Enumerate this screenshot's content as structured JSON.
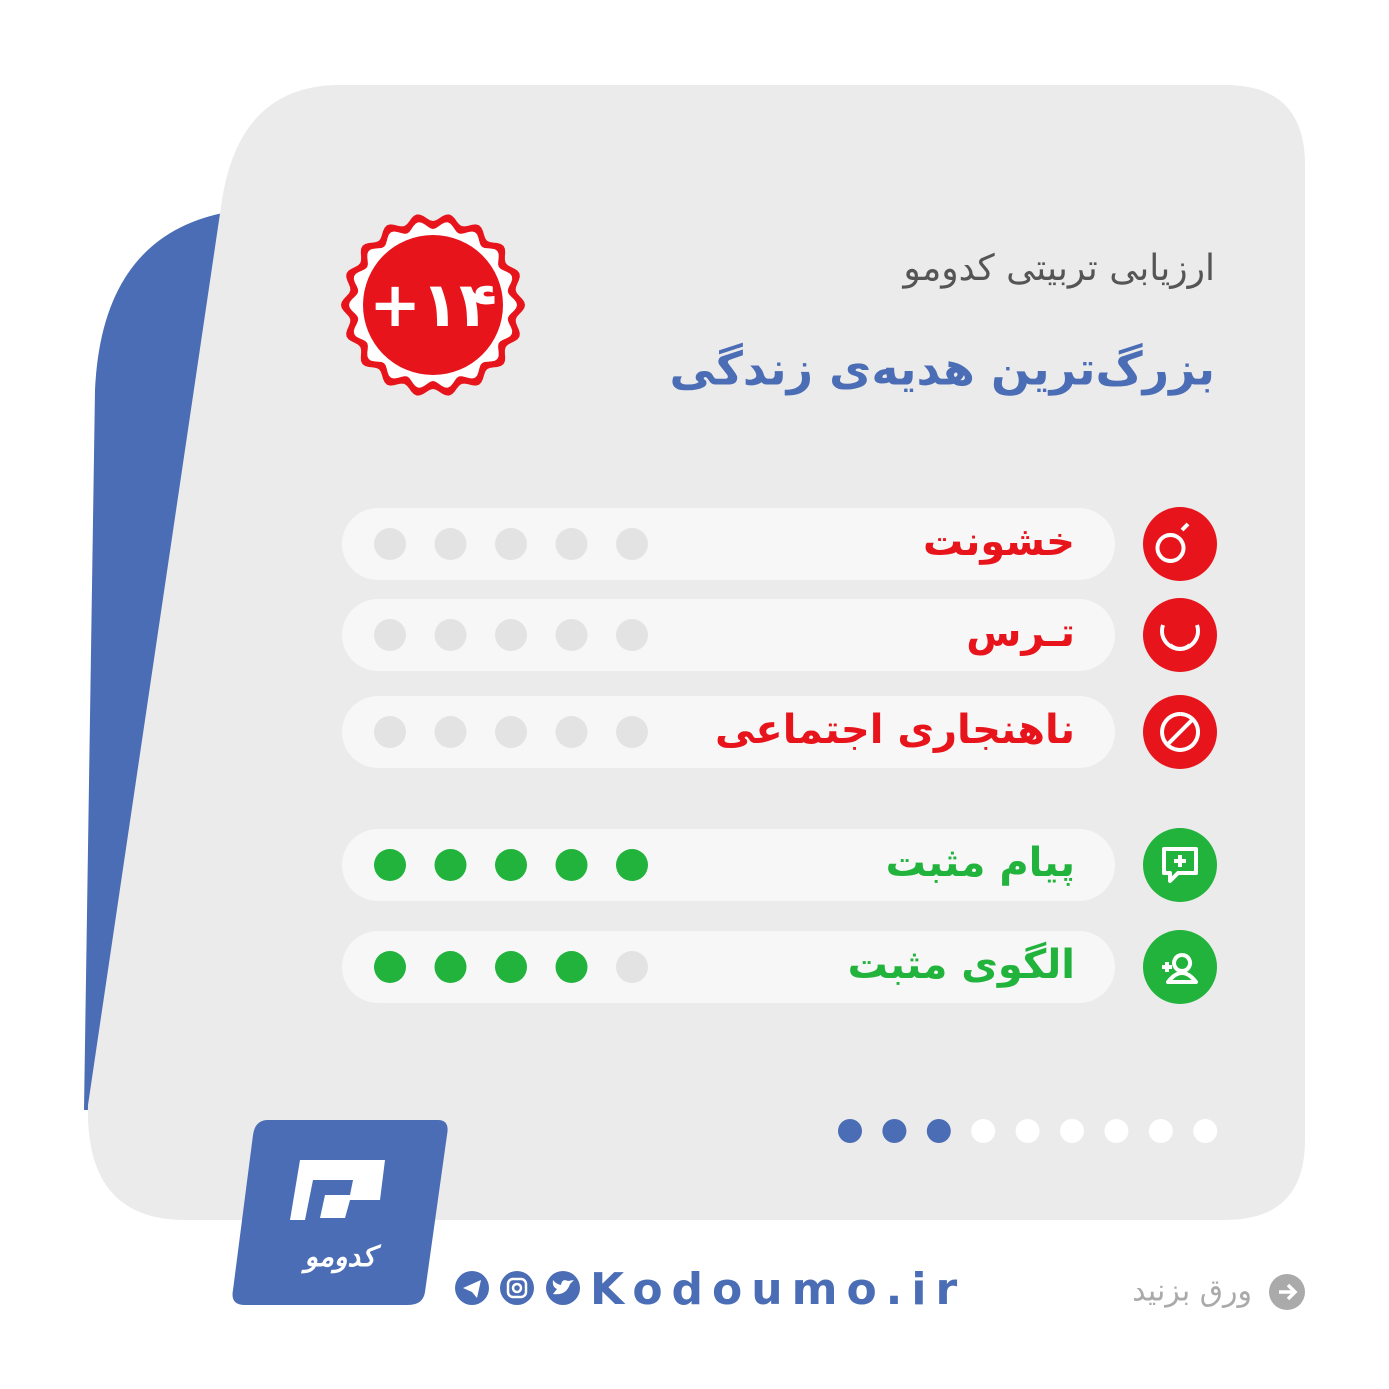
{
  "header": {
    "title": "ارزیابی تربیتی کدومو",
    "subtitle": "بزرگ‌ترین هدیه‌ی زندگی",
    "badge": "+۱۴"
  },
  "ratings": [
    {
      "label": "خشونت",
      "value": 0,
      "kind": "negative"
    },
    {
      "label": "تـرس",
      "value": 0,
      "kind": "negative"
    },
    {
      "label": "ناهنجاری اجتماعی",
      "value": 0,
      "kind": "negative"
    },
    {
      "label": "پیام مثبت",
      "value": 5,
      "kind": "positive"
    },
    {
      "label": "الگوی مثبت",
      "value": 4,
      "kind": "positive"
    }
  ],
  "pagination": {
    "current": 3,
    "total": 9
  },
  "footer": {
    "logo": "کدومو",
    "website": "Kodoumo.ir",
    "swipe": "ورق بزنید"
  }
}
